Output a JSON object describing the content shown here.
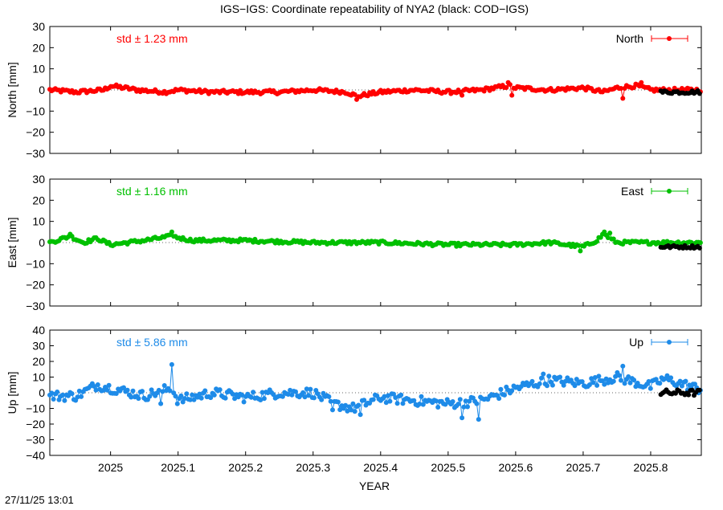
{
  "title": "IGS−IGS: Coordinate repeatability of NYA2 (black: COD−IGS)",
  "timestamp": "27/11/25 13:01",
  "chart_data": {
    "type": "line",
    "xlabel": "YEAR",
    "xlim": [
      2024.91,
      2025.875
    ],
    "xticks": [
      "2025",
      "2025.1",
      "2025.2",
      "2025.3",
      "2025.4",
      "2025.5",
      "2025.6",
      "2025.7",
      "2025.8"
    ],
    "panels": [
      {
        "key": "north",
        "ylabel": "North [mm]",
        "legend": "North",
        "std_label": "std ± 1.23 mm",
        "color": "#ff0000",
        "ylim": [
          -30,
          30
        ],
        "yticks": [
          "30",
          "20",
          "10",
          "0",
          "−10",
          "−20",
          "−30"
        ],
        "knots_x": [
          2024.91,
          2024.95,
          2024.99,
          2025.0,
          2025.04,
          2025.08,
          2025.1,
          2025.15,
          2025.2,
          2025.25,
          2025.3,
          2025.35,
          2025.365,
          2025.4,
          2025.45,
          2025.5,
          2025.55,
          2025.59,
          2025.6,
          2025.65,
          2025.7,
          2025.73,
          2025.75,
          2025.78,
          2025.8,
          2025.875
        ],
        "knots_y": [
          0,
          -1,
          0,
          2,
          0,
          -1,
          0,
          -1,
          -1,
          -1,
          0,
          -1,
          -3,
          -1,
          0,
          -1,
          0,
          2,
          1,
          0,
          1,
          -1,
          1,
          2,
          0,
          0
        ],
        "noise": 0.9,
        "outliers": [
          [
            2025.365,
            -4.5
          ],
          [
            2025.59,
            3.5
          ],
          [
            2025.76,
            -4
          ],
          [
            2025.785,
            3.5
          ],
          [
            2025.595,
            -2.5
          ],
          [
            2025.52,
            -2.5
          ]
        ],
        "cod_x": [
          2025.815,
          2025.875
        ],
        "cod_level": -1,
        "cod_noise": 0.8
      },
      {
        "key": "east",
        "ylabel": "East [mm]",
        "legend": "East",
        "std_label": "std ± 1.16 mm",
        "color": "#00c000",
        "ylim": [
          -30,
          30
        ],
        "yticks": [
          "30",
          "20",
          "10",
          "0",
          "−10",
          "−20",
          "−30"
        ],
        "knots_x": [
          2024.91,
          2024.94,
          2024.96,
          2024.98,
          2025.0,
          2025.05,
          2025.09,
          2025.12,
          2025.2,
          2025.3,
          2025.4,
          2025.5,
          2025.6,
          2025.65,
          2025.7,
          2025.72,
          2025.73,
          2025.75,
          2025.8,
          2025.875
        ],
        "knots_y": [
          0,
          3,
          0,
          2,
          -1,
          1,
          3,
          1,
          1,
          0,
          0,
          -1,
          -1,
          0,
          -2,
          1,
          4,
          0,
          0,
          0
        ],
        "noise": 0.8,
        "outliers": [
          [
            2024.94,
            4
          ],
          [
            2025.09,
            5
          ],
          [
            2025.73,
            5
          ],
          [
            2025.74,
            4.5
          ],
          [
            2025.695,
            -4
          ]
        ],
        "cod_x": [
          2025.815,
          2025.875
        ],
        "cod_level": -2,
        "cod_noise": 0.7
      },
      {
        "key": "up",
        "ylabel": "Up [mm]",
        "legend": "Up",
        "std_label": "std ± 5.86 mm",
        "color": "#1e8be8",
        "ylim": [
          -40,
          40
        ],
        "yticks": [
          "40",
          "30",
          "20",
          "10",
          "0",
          "−10",
          "−20",
          "−30",
          "−40"
        ],
        "knots_x": [
          2024.91,
          2024.95,
          2024.98,
          2025.0,
          2025.05,
          2025.09,
          2025.1,
          2025.15,
          2025.2,
          2025.25,
          2025.3,
          2025.33,
          2025.36,
          2025.4,
          2025.45,
          2025.5,
          2025.55,
          2025.6,
          2025.65,
          2025.7,
          2025.75,
          2025.8,
          2025.82,
          2025.875
        ],
        "knots_y": [
          -2,
          -2,
          5,
          3,
          -2,
          3,
          -5,
          0,
          -3,
          0,
          0,
          -7,
          -10,
          -3,
          -5,
          -7,
          -5,
          3,
          8,
          6,
          10,
          4,
          9,
          2
        ],
        "noise": 3.2,
        "outliers": [
          [
            2025.09,
            18
          ],
          [
            2025.76,
            17
          ],
          [
            2025.52,
            -16
          ],
          [
            2025.545,
            -17
          ],
          [
            2025.37,
            -14
          ],
          [
            2025.075,
            -7
          ],
          [
            2025.33,
            -11
          ],
          [
            2025.64,
            12
          ]
        ],
        "cod_x": [
          2025.815,
          2025.875
        ],
        "cod_level": 0,
        "cod_noise": 2.0
      }
    ]
  }
}
